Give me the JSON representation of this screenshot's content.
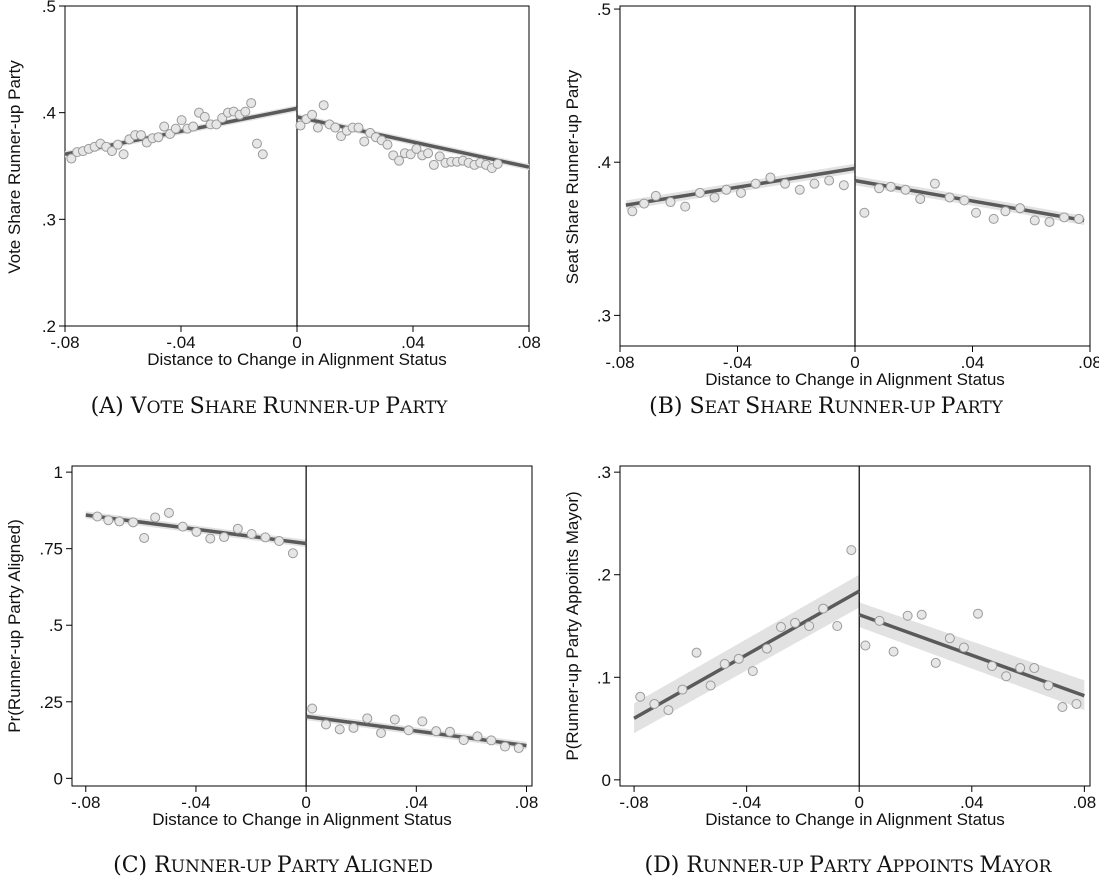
{
  "chart_data": [
    {
      "id": "a",
      "type": "scatter",
      "caption_label": "(A)",
      "caption_title": "Vote Share Runner-up Party",
      "xlabel": "Distance to Change in Alignment Status",
      "ylabel": "Vote Share Runner-up Party",
      "xlim": [
        -0.08,
        0.08
      ],
      "ylim": [
        0.2,
        0.5
      ],
      "xticks": [
        -0.08,
        -0.04,
        0,
        0.04,
        0.08
      ],
      "xtick_labels": [
        "-.08",
        "-.04",
        "0",
        ".04",
        ".08"
      ],
      "yticks": [
        0.2,
        0.3,
        0.4,
        0.5
      ],
      "ytick_labels": [
        ".2",
        ".3",
        ".4",
        ".5"
      ],
      "cutoff": 0,
      "ci_halfwidth": 0.003,
      "fit": [
        {
          "side": "left",
          "x": [
            -0.08,
            0.0
          ],
          "y": [
            0.361,
            0.404
          ]
        },
        {
          "side": "right",
          "x": [
            0.0,
            0.08
          ],
          "y": [
            0.396,
            0.349
          ]
        }
      ],
      "points": [
        [
          -0.0778,
          0.357
        ],
        [
          -0.0758,
          0.363
        ],
        [
          -0.0738,
          0.364
        ],
        [
          -0.0718,
          0.366
        ],
        [
          -0.0698,
          0.368
        ],
        [
          -0.0678,
          0.371
        ],
        [
          -0.0658,
          0.368
        ],
        [
          -0.0638,
          0.364
        ],
        [
          -0.0618,
          0.37
        ],
        [
          -0.0598,
          0.361
        ],
        [
          -0.0578,
          0.375
        ],
        [
          -0.0558,
          0.379
        ],
        [
          -0.0538,
          0.379
        ],
        [
          -0.0518,
          0.372
        ],
        [
          -0.0498,
          0.376
        ],
        [
          -0.0478,
          0.377
        ],
        [
          -0.0458,
          0.387
        ],
        [
          -0.0438,
          0.38
        ],
        [
          -0.0418,
          0.385
        ],
        [
          -0.0398,
          0.393
        ],
        [
          -0.0378,
          0.385
        ],
        [
          -0.0358,
          0.387
        ],
        [
          -0.0338,
          0.4
        ],
        [
          -0.0318,
          0.396
        ],
        [
          -0.0298,
          0.389
        ],
        [
          -0.0278,
          0.389
        ],
        [
          -0.0258,
          0.395
        ],
        [
          -0.0238,
          0.4
        ],
        [
          -0.0218,
          0.401
        ],
        [
          -0.0198,
          0.398
        ],
        [
          -0.0178,
          0.401
        ],
        [
          -0.0158,
          0.409
        ],
        [
          -0.0138,
          0.371
        ],
        [
          -0.0118,
          0.361
        ],
        [
          0.0012,
          0.388
        ],
        [
          0.0032,
          0.394
        ],
        [
          0.0052,
          0.398
        ],
        [
          0.0072,
          0.386
        ],
        [
          0.0092,
          0.407
        ],
        [
          0.0112,
          0.389
        ],
        [
          0.0132,
          0.386
        ],
        [
          0.0152,
          0.378
        ],
        [
          0.0172,
          0.383
        ],
        [
          0.0192,
          0.386
        ],
        [
          0.0212,
          0.386
        ],
        [
          0.0232,
          0.373
        ],
        [
          0.0252,
          0.381
        ],
        [
          0.0272,
          0.377
        ],
        [
          0.0292,
          0.374
        ],
        [
          0.0312,
          0.37
        ],
        [
          0.0332,
          0.36
        ],
        [
          0.0352,
          0.355
        ],
        [
          0.0372,
          0.362
        ],
        [
          0.0392,
          0.361
        ],
        [
          0.0412,
          0.366
        ],
        [
          0.0432,
          0.36
        ],
        [
          0.0452,
          0.362
        ],
        [
          0.0472,
          0.351
        ],
        [
          0.0492,
          0.359
        ],
        [
          0.0512,
          0.353
        ],
        [
          0.0532,
          0.354
        ],
        [
          0.0552,
          0.354
        ],
        [
          0.0572,
          0.355
        ],
        [
          0.0592,
          0.353
        ],
        [
          0.0612,
          0.351
        ],
        [
          0.0632,
          0.353
        ],
        [
          0.0652,
          0.351
        ],
        [
          0.0672,
          0.348
        ],
        [
          0.0692,
          0.352
        ]
      ]
    },
    {
      "id": "b",
      "type": "scatter",
      "caption_label": "(B)",
      "caption_title": "Seat Share Runner-up Party",
      "xlabel": "Distance to Change in Alignment Status",
      "ylabel": "Seat Share Runner-up Party",
      "xlim": [
        -0.08,
        0.08
      ],
      "ylim": [
        0.28,
        0.502
      ],
      "xticks": [
        -0.08,
        -0.04,
        0,
        0.04,
        0.08
      ],
      "xtick_labels": [
        "-.08",
        "-.04",
        "0",
        ".04",
        ".08"
      ],
      "yticks": [
        0.3,
        0.4,
        0.5
      ],
      "ytick_labels": [
        ".3",
        ".4",
        ".5"
      ],
      "cutoff": 0,
      "ci_halfwidth": 0.003,
      "fit": [
        {
          "side": "left",
          "x": [
            -0.078,
            0.0
          ],
          "y": [
            0.372,
            0.396
          ]
        },
        {
          "side": "right",
          "x": [
            0.0,
            0.078
          ],
          "y": [
            0.388,
            0.362
          ]
        }
      ],
      "points": [
        [
          -0.0758,
          0.368
        ],
        [
          -0.0718,
          0.373
        ],
        [
          -0.0678,
          0.378
        ],
        [
          -0.0628,
          0.374
        ],
        [
          -0.0578,
          0.371
        ],
        [
          -0.0528,
          0.38
        ],
        [
          -0.0478,
          0.377
        ],
        [
          -0.0438,
          0.382
        ],
        [
          -0.0388,
          0.38
        ],
        [
          -0.0338,
          0.386
        ],
        [
          -0.0288,
          0.39
        ],
        [
          -0.0238,
          0.386
        ],
        [
          -0.0188,
          0.382
        ],
        [
          -0.0138,
          0.386
        ],
        [
          -0.0088,
          0.388
        ],
        [
          -0.0038,
          0.385
        ],
        [
          0.0032,
          0.367
        ],
        [
          0.0082,
          0.383
        ],
        [
          0.0122,
          0.384
        ],
        [
          0.0172,
          0.382
        ],
        [
          0.0222,
          0.376
        ],
        [
          0.0272,
          0.386
        ],
        [
          0.0322,
          0.377
        ],
        [
          0.0372,
          0.375
        ],
        [
          0.0412,
          0.367
        ],
        [
          0.0472,
          0.363
        ],
        [
          0.0512,
          0.368
        ],
        [
          0.0562,
          0.37
        ],
        [
          0.0612,
          0.362
        ],
        [
          0.0662,
          0.361
        ],
        [
          0.0712,
          0.364
        ],
        [
          0.0762,
          0.363
        ]
      ]
    },
    {
      "id": "c",
      "type": "scatter",
      "caption_label": "(C)",
      "caption_title": "Runner-up Party Aligned",
      "xlabel": "Distance to Change in Alignment Status",
      "ylabel": "Pr(Runner-up Party Aligned)",
      "xlim": [
        -0.085,
        0.082
      ],
      "ylim": [
        -0.025,
        1.02
      ],
      "xticks": [
        -0.08,
        -0.04,
        0,
        0.04,
        0.08
      ],
      "xtick_labels": [
        "-.08",
        "-.04",
        "0",
        ".04",
        ".08"
      ],
      "yticks": [
        0,
        0.25,
        0.5,
        0.75,
        1
      ],
      "ytick_labels": [
        "0",
        ".25",
        ".5",
        ".75",
        "1"
      ],
      "cutoff": 0,
      "ci_halfwidth": 0.012,
      "fit": [
        {
          "side": "left",
          "x": [
            -0.08,
            0.0
          ],
          "y": [
            0.86,
            0.767
          ]
        },
        {
          "side": "right",
          "x": [
            0.0,
            0.08
          ],
          "y": [
            0.202,
            0.107
          ]
        }
      ],
      "points": [
        [
          -0.0758,
          0.855
        ],
        [
          -0.0718,
          0.843
        ],
        [
          -0.0678,
          0.839
        ],
        [
          -0.0628,
          0.836
        ],
        [
          -0.0588,
          0.785
        ],
        [
          -0.0548,
          0.852
        ],
        [
          -0.0498,
          0.867
        ],
        [
          -0.0448,
          0.822
        ],
        [
          -0.0398,
          0.805
        ],
        [
          -0.0348,
          0.783
        ],
        [
          -0.0298,
          0.788
        ],
        [
          -0.0248,
          0.815
        ],
        [
          -0.0198,
          0.798
        ],
        [
          -0.0148,
          0.787
        ],
        [
          -0.0098,
          0.775
        ],
        [
          -0.0048,
          0.735
        ],
        [
          0.0022,
          0.228
        ],
        [
          0.0072,
          0.176
        ],
        [
          0.0122,
          0.16
        ],
        [
          0.0172,
          0.165
        ],
        [
          0.0222,
          0.196
        ],
        [
          0.0272,
          0.148
        ],
        [
          0.0322,
          0.192
        ],
        [
          0.0372,
          0.157
        ],
        [
          0.0422,
          0.186
        ],
        [
          0.0472,
          0.154
        ],
        [
          0.0522,
          0.152
        ],
        [
          0.0572,
          0.125
        ],
        [
          0.0622,
          0.137
        ],
        [
          0.0672,
          0.124
        ],
        [
          0.0722,
          0.104
        ],
        [
          0.0772,
          0.099
        ]
      ]
    },
    {
      "id": "d",
      "type": "scatter",
      "caption_label": "(D)",
      "caption_title": "Runner-up Party Appoints Mayor",
      "xlabel": "Distance to Change in Alignment Status",
      "ylabel": "P(Runner-up Party Appoints Mayor)",
      "xlim": [
        -0.085,
        0.082
      ],
      "ylim": [
        -0.006,
        0.306
      ],
      "xticks": [
        -0.08,
        -0.04,
        0,
        0.04,
        0.08
      ],
      "xtick_labels": [
        "-.08",
        "-.04",
        "0",
        ".04",
        ".08"
      ],
      "yticks": [
        0,
        0.1,
        0.2,
        0.3
      ],
      "ytick_labels": [
        "0",
        ".1",
        ".2",
        ".3"
      ],
      "cutoff": 0,
      "ci_band": [
        {
          "side": "left",
          "x": [
            -0.08,
            0.0
          ],
          "upper": [
            0.0745,
            0.2
          ],
          "lower": [
            0.0455,
            0.168
          ]
        },
        {
          "side": "right",
          "x": [
            0.0,
            0.08
          ],
          "upper": [
            0.173,
            0.097
          ],
          "lower": [
            0.149,
            0.068
          ]
        }
      ],
      "fit": [
        {
          "side": "left",
          "x": [
            -0.08,
            0.0
          ],
          "y": [
            0.06,
            0.184
          ]
        },
        {
          "side": "right",
          "x": [
            0.0,
            0.08
          ],
          "y": [
            0.161,
            0.082
          ]
        }
      ],
      "points": [
        [
          -0.0778,
          0.081
        ],
        [
          -0.0728,
          0.074
        ],
        [
          -0.0678,
          0.068
        ],
        [
          -0.0628,
          0.088
        ],
        [
          -0.0578,
          0.124
        ],
        [
          -0.0528,
          0.092
        ],
        [
          -0.0478,
          0.113
        ],
        [
          -0.0428,
          0.118
        ],
        [
          -0.0378,
          0.106
        ],
        [
          -0.0328,
          0.128
        ],
        [
          -0.0278,
          0.149
        ],
        [
          -0.0228,
          0.153
        ],
        [
          -0.0178,
          0.15
        ],
        [
          -0.0128,
          0.167
        ],
        [
          -0.0078,
          0.15
        ],
        [
          -0.0028,
          0.224
        ],
        [
          0.0022,
          0.131
        ],
        [
          0.0072,
          0.155
        ],
        [
          0.0122,
          0.125
        ],
        [
          0.0172,
          0.16
        ],
        [
          0.0222,
          0.161
        ],
        [
          0.0272,
          0.114
        ],
        [
          0.0322,
          0.138
        ],
        [
          0.0372,
          0.129
        ],
        [
          0.0422,
          0.162
        ],
        [
          0.0472,
          0.111
        ],
        [
          0.0522,
          0.101
        ],
        [
          0.0572,
          0.109
        ],
        [
          0.0622,
          0.109
        ],
        [
          0.0672,
          0.092
        ],
        [
          0.0722,
          0.071
        ],
        [
          0.0772,
          0.074
        ]
      ]
    }
  ]
}
